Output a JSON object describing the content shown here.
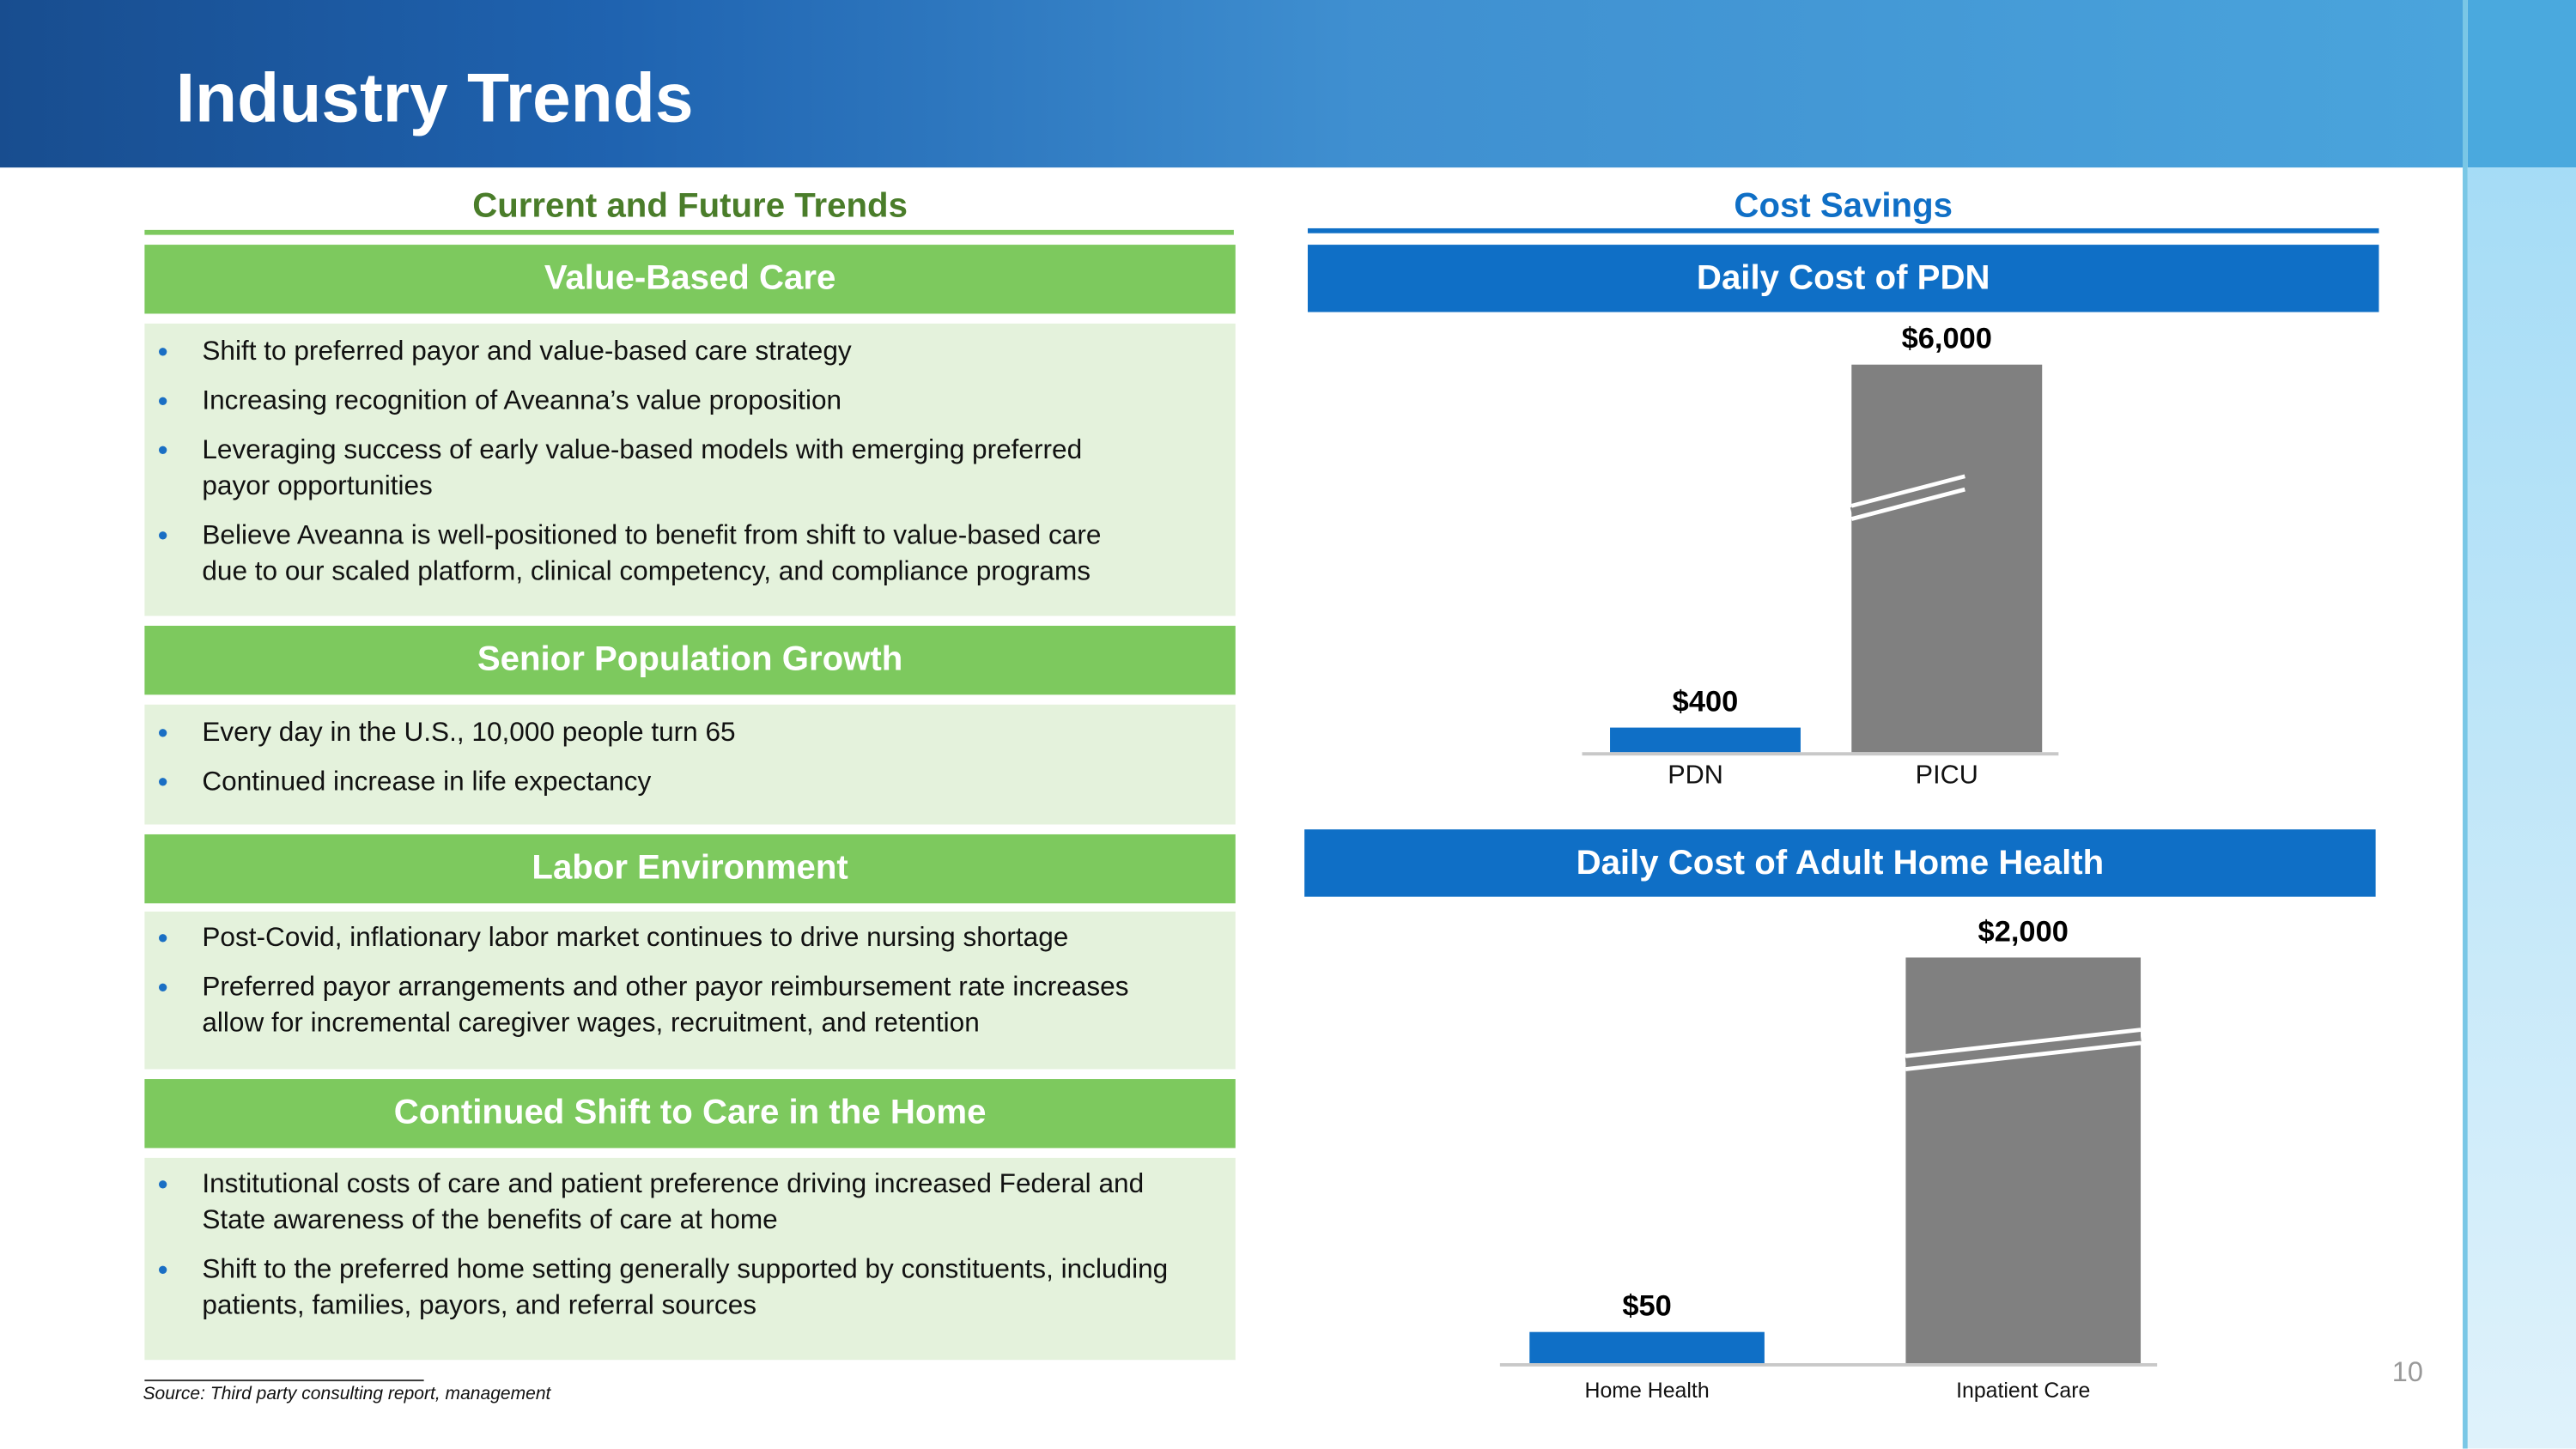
{
  "header": {
    "title": "Industry Trends"
  },
  "left": {
    "heading": "Current and Future Trends",
    "sections": [
      {
        "title": "Value-Based Care",
        "bullets": [
          "Shift to preferred payor and value-based care strategy",
          "Increasing recognition of Aveanna’s value proposition",
          "Leveraging success of early value-based models with emerging preferred payor opportunities",
          "Believe Aveanna is well-positioned to benefit from shift to value-based care due to our scaled platform, clinical competency, and compliance programs"
        ]
      },
      {
        "title": "Senior Population Growth",
        "bullets": [
          "Every day in the U.S., 10,000 people turn 65",
          "Continued increase in life expectancy"
        ]
      },
      {
        "title": "Labor Environment",
        "bullets": [
          "Post-Covid, inflationary labor market continues to drive nursing shortage",
          "Preferred payor arrangements and other payor reimbursement rate increases allow for incremental caregiver wages, recruitment, and retention"
        ]
      },
      {
        "title": "Continued Shift to Care in the Home",
        "bullets": [
          "Institutional costs of care and patient preference driving increased Federal and State awareness of the benefits of care at home",
          "Shift to the preferred home setting generally supported by constituents, including patients, families, payors, and referral sources"
        ]
      }
    ]
  },
  "right": {
    "heading": "Cost Savings"
  },
  "chart_data": [
    {
      "type": "bar",
      "title": "Daily Cost of PDN",
      "categories": [
        "PDN",
        "PICU"
      ],
      "values": [
        400,
        6000
      ],
      "data_labels": [
        "$400",
        "$6,000"
      ],
      "colors": [
        "#0f6fc6",
        "#808080"
      ],
      "axis_break": "PICU",
      "grid": false
    },
    {
      "type": "bar",
      "title": "Daily Cost of Adult Home Health",
      "categories": [
        "Home Health",
        "Inpatient Care"
      ],
      "values": [
        50,
        2000
      ],
      "data_labels": [
        "$50",
        "$2,000"
      ],
      "colors": [
        "#0f6fc6",
        "#808080"
      ],
      "axis_break": "Inpatient Care",
      "grid": false
    }
  ],
  "footer": {
    "source": "Source: Third party consulting report, management",
    "page_number": "10"
  },
  "colors": {
    "green": "#7dc95e",
    "green_text": "#4a7d2a",
    "blue": "#0f6fc6",
    "bar_gray": "#808080",
    "box_bg": "#e4f2dc"
  }
}
